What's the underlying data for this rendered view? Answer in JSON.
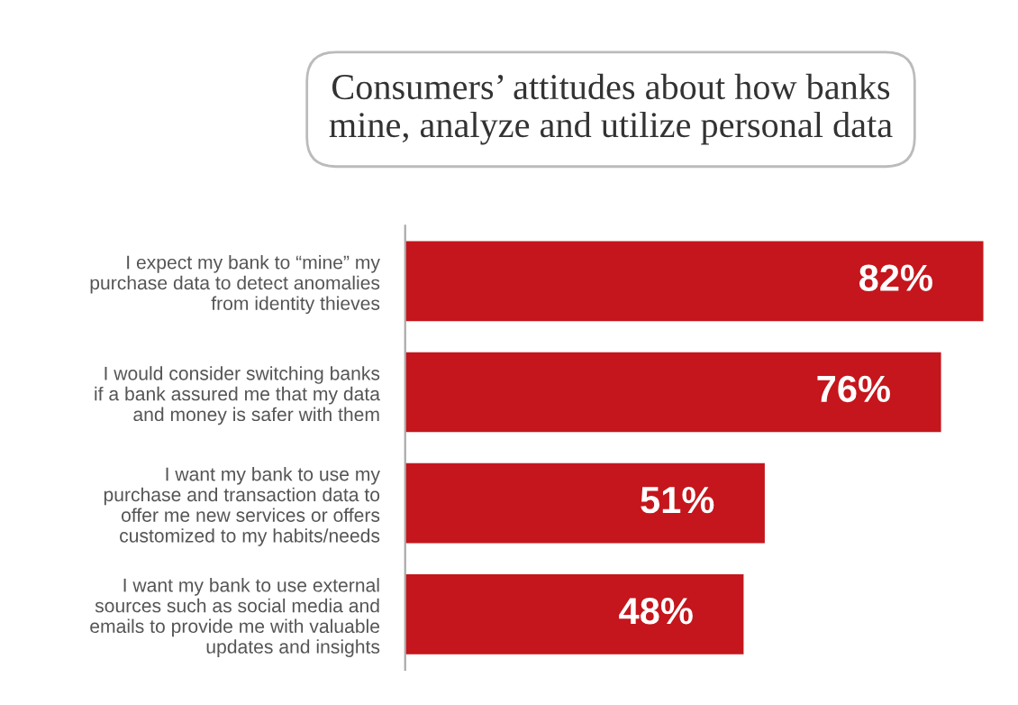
{
  "chart_data": {
    "type": "bar",
    "orientation": "horizontal",
    "title": "Consumers’ attitudes about how banks\nmine, analyze and utilize personal data",
    "categories": [
      "I expect my bank to “mine” my\npurchase data to detect anomalies\nfrom identity thieves",
      "I would consider switching banks\nif a bank assured me that my data\nand money is safer with them",
      "I want my bank to use my\npurchase and transaction data to\noffer me new services or offers\ncustomized to my habits/needs",
      "I want my bank to use external\nsources such as social media and\nemails to provide me with valuable\nupdates and insights"
    ],
    "values": [
      82,
      76,
      51,
      48
    ],
    "value_labels": [
      "82%",
      "76%",
      "51%",
      "48%"
    ],
    "color": "#c4161c",
    "tick_labels": "y",
    "grid": false,
    "legend": false
  }
}
